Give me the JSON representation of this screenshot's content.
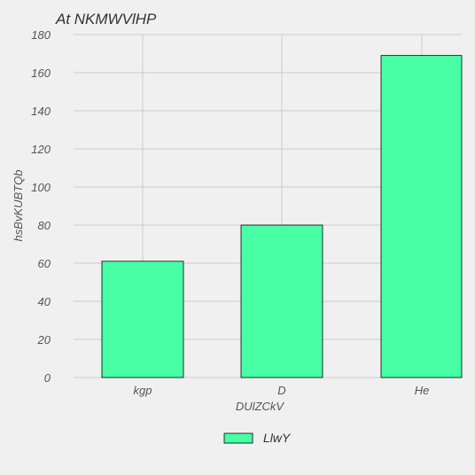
{
  "chart_data": {
    "type": "bar",
    "title": "At NKMWVlHP",
    "xlabel": "DUlZCkV",
    "ylabel": "hsBvKUBTQb",
    "categories": [
      "kgp",
      "D",
      "He"
    ],
    "series": [
      {
        "name": "LlwY",
        "values": [
          61,
          80,
          169
        ]
      }
    ],
    "ylim": [
      0,
      180
    ],
    "yticks": [
      0,
      20,
      40,
      60,
      80,
      100,
      120,
      140,
      160,
      180
    ],
    "grid": true,
    "legend_position": "bottom-center",
    "colors": {
      "bar": "#48ffa6",
      "background": "#f0f0f0",
      "grid": "#cbcbcb"
    }
  }
}
